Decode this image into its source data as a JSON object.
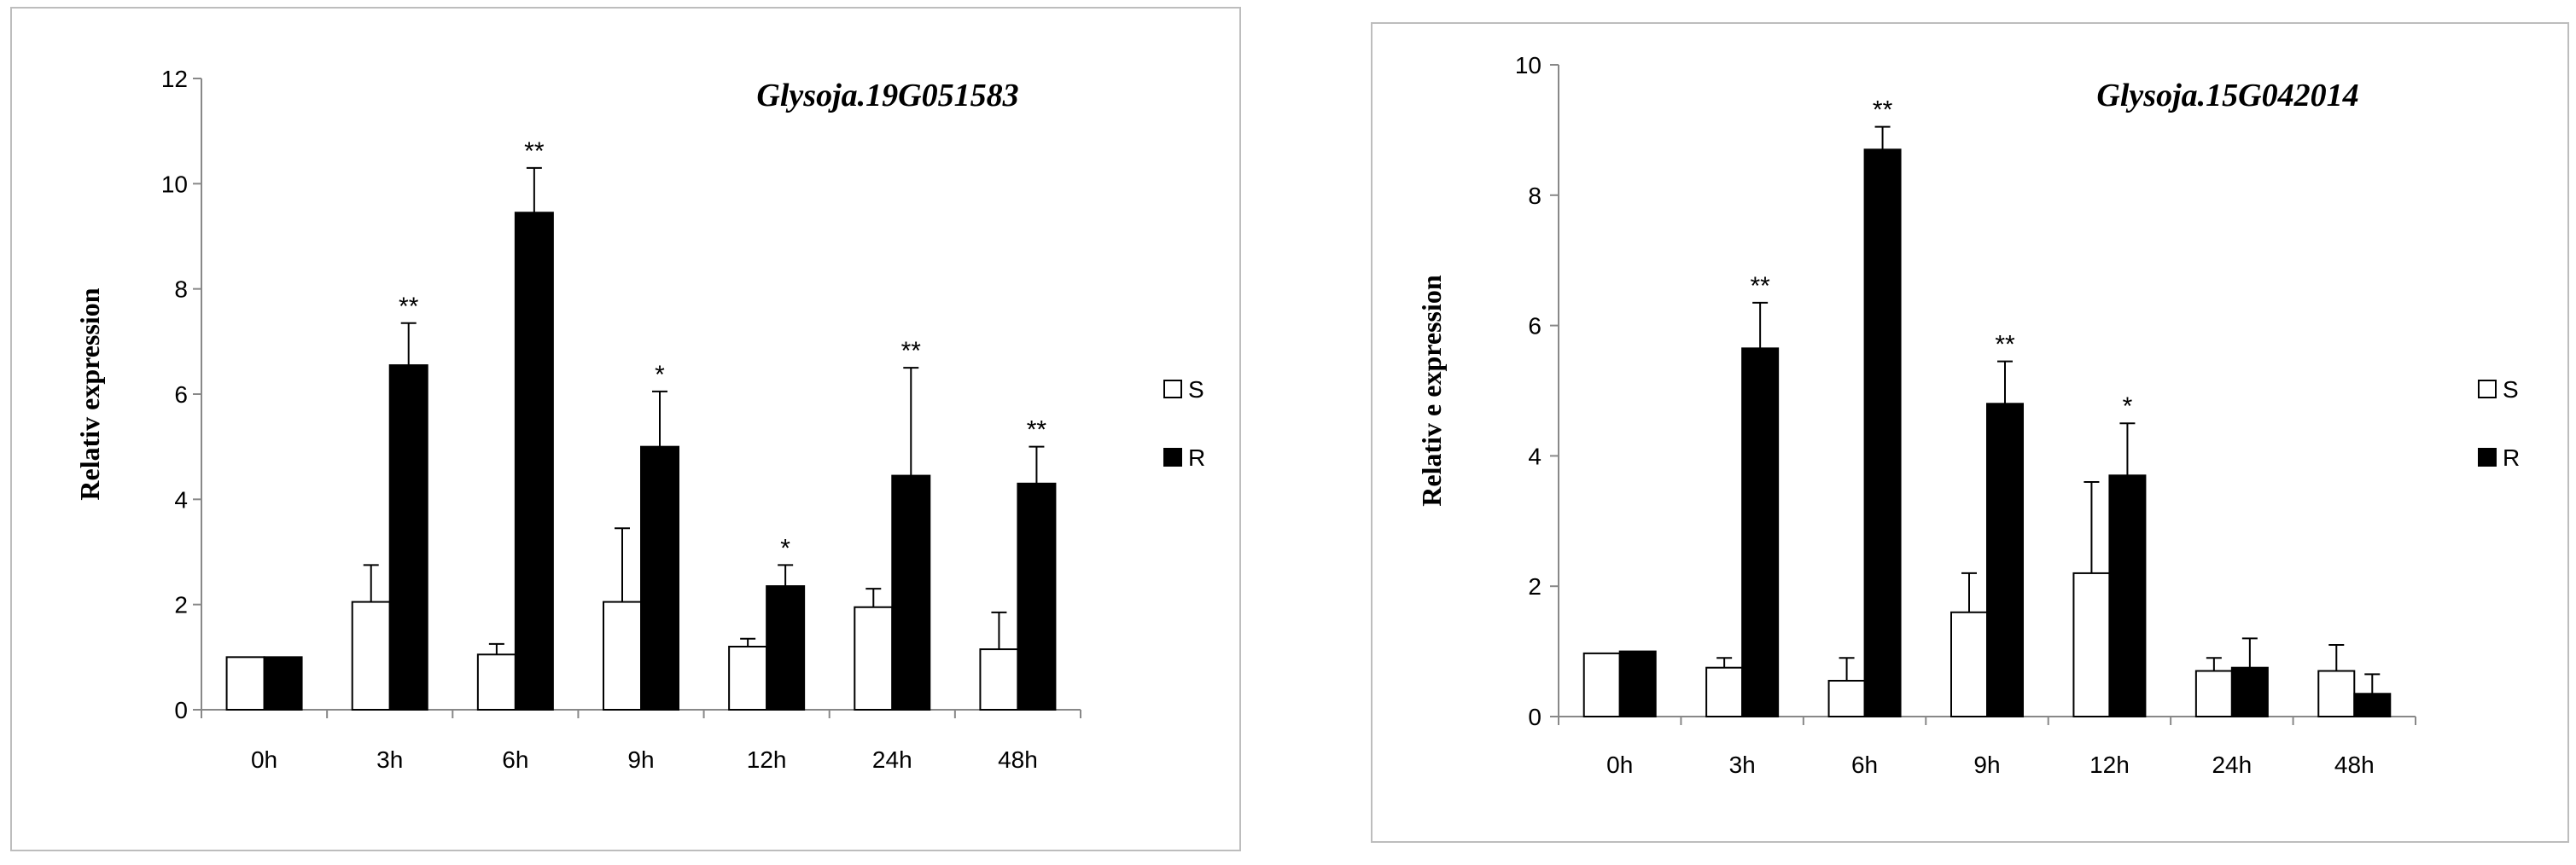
{
  "chart_data": [
    {
      "type": "bar",
      "title": "Glysoja.19G051583",
      "xlabel": "",
      "ylabel": "Relativ expression",
      "ylim": [
        0,
        12
      ],
      "yticks": [
        0,
        2,
        4,
        6,
        8,
        10,
        12
      ],
      "categories": [
        "0h",
        "3h",
        "6h",
        "9h",
        "12h",
        "24h",
        "48h"
      ],
      "series": [
        {
          "name": "S",
          "color": "#ffffff",
          "values": [
            1.0,
            2.05,
            1.05,
            2.05,
            1.2,
            1.95,
            1.15
          ],
          "errors": [
            0.0,
            0.7,
            0.2,
            1.4,
            0.15,
            0.35,
            0.7
          ],
          "sig": [
            "",
            "",
            "",
            "",
            "",
            "",
            ""
          ]
        },
        {
          "name": "R",
          "color": "#000000",
          "values": [
            1.0,
            6.55,
            9.45,
            5.0,
            2.35,
            4.45,
            4.3
          ],
          "errors": [
            0.0,
            0.8,
            0.85,
            1.05,
            0.4,
            2.05,
            0.7
          ],
          "sig": [
            "",
            "**",
            "**",
            "*",
            "*",
            "**",
            "**"
          ]
        }
      ],
      "legend_position": "right"
    },
    {
      "type": "bar",
      "title": "Glysoja.15G042014",
      "xlabel": "",
      "ylabel": "Relativ e expression",
      "ylim": [
        0,
        10
      ],
      "yticks": [
        0,
        2,
        4,
        6,
        8,
        10
      ],
      "categories": [
        "0h",
        "3h",
        "6h",
        "9h",
        "12h",
        "24h",
        "48h"
      ],
      "series": [
        {
          "name": "S",
          "color": "#ffffff",
          "values": [
            0.97,
            0.75,
            0.55,
            1.6,
            2.2,
            0.7,
            0.7
          ],
          "errors": [
            0.0,
            0.15,
            0.35,
            0.6,
            1.4,
            0.2,
            0.4
          ],
          "sig": [
            "",
            "",
            "",
            "",
            "",
            "",
            ""
          ]
        },
        {
          "name": "R",
          "color": "#000000",
          "values": [
            1.0,
            5.65,
            8.7,
            4.8,
            3.7,
            0.75,
            0.35
          ],
          "errors": [
            0.0,
            0.7,
            0.35,
            0.65,
            0.8,
            0.45,
            0.3
          ],
          "sig": [
            "",
            "**",
            "**",
            "**",
            "*",
            "",
            ""
          ]
        }
      ],
      "legend_position": "right"
    }
  ]
}
